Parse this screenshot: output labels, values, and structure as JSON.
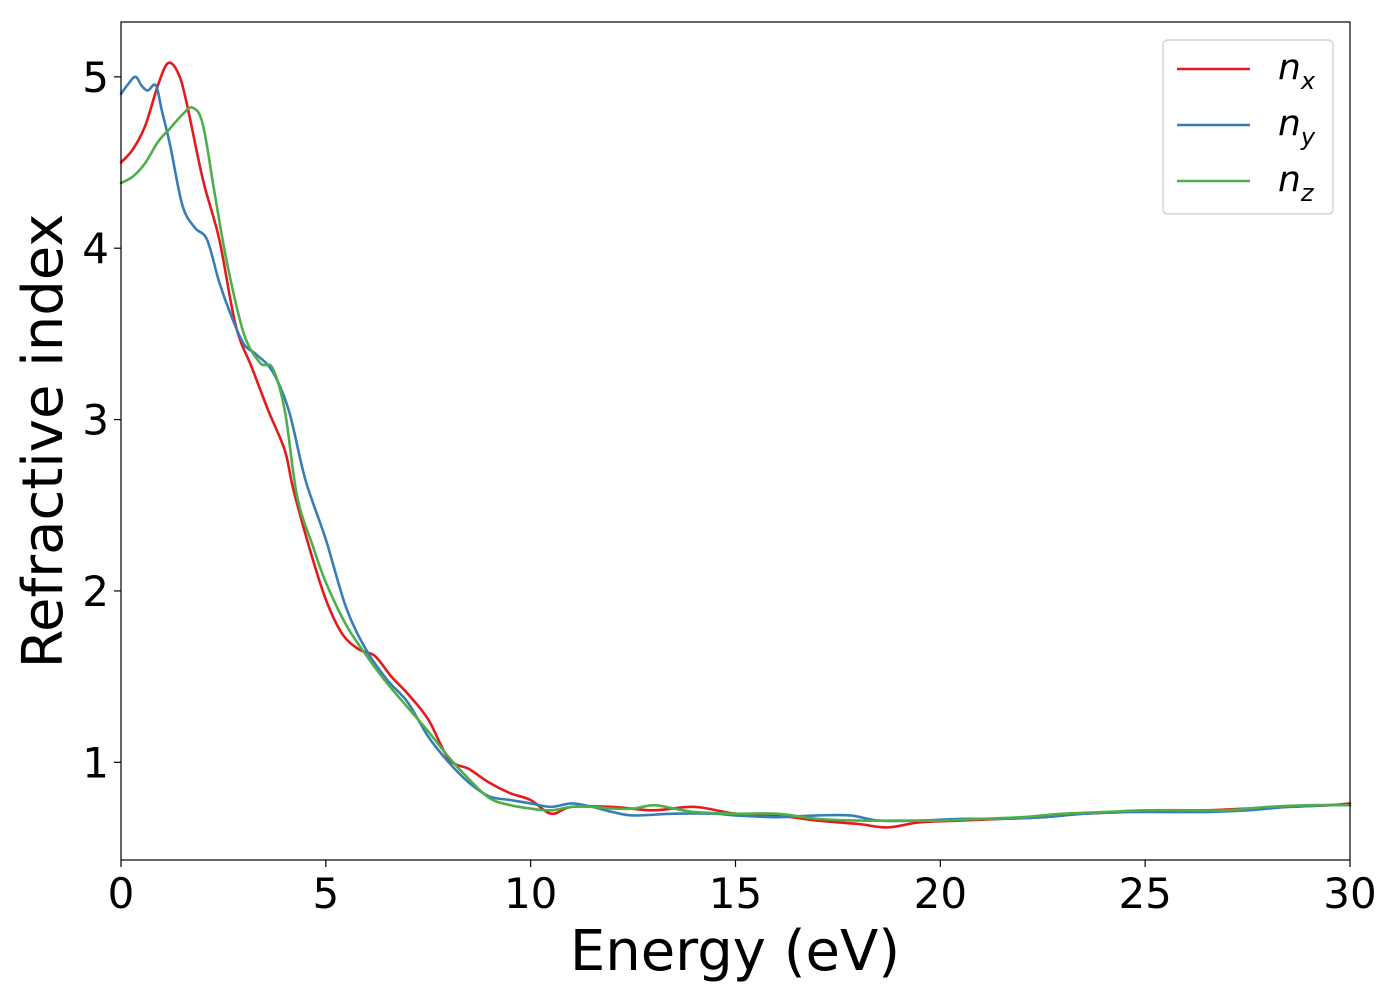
{
  "chart_data": {
    "type": "line",
    "title": "",
    "xlabel": "Energy (eV)",
    "ylabel": "Refractive index",
    "xlim": [
      0,
      30
    ],
    "ylim": [
      0.43,
      5.32
    ],
    "xticks": [
      0,
      5,
      10,
      15,
      20,
      25,
      30
    ],
    "yticks": [
      1,
      2,
      3,
      4,
      5
    ],
    "grid": false,
    "legend_position": "top-right",
    "series": [
      {
        "name": "n_x",
        "label_base": "n",
        "label_sub": "x",
        "color": "#e41a1c",
        "x": [
          0,
          0.3,
          0.6,
          0.9,
          1.15,
          1.4,
          1.6,
          2.0,
          2.4,
          2.8,
          3.2,
          3.6,
          4.0,
          4.2,
          4.6,
          5.0,
          5.4,
          5.8,
          6.2,
          6.6,
          7.0,
          7.5,
          8.0,
          8.5,
          9.0,
          9.5,
          10.0,
          10.5,
          11.0,
          12.0,
          13.0,
          14.0,
          15.0,
          16.0,
          17.0,
          18.0,
          18.7,
          19.5,
          20.5,
          21.5,
          22.5,
          23.5,
          24.5,
          25.5,
          26.5,
          27.5,
          28.5,
          29.5,
          30.0
        ],
        "y": [
          4.5,
          4.58,
          4.72,
          4.95,
          5.08,
          5.02,
          4.85,
          4.4,
          4.05,
          3.55,
          3.3,
          3.05,
          2.82,
          2.6,
          2.25,
          1.95,
          1.75,
          1.66,
          1.62,
          1.5,
          1.4,
          1.25,
          1.02,
          0.96,
          0.88,
          0.82,
          0.78,
          0.7,
          0.74,
          0.74,
          0.72,
          0.74,
          0.7,
          0.69,
          0.66,
          0.64,
          0.62,
          0.65,
          0.66,
          0.67,
          0.68,
          0.7,
          0.71,
          0.72,
          0.72,
          0.73,
          0.74,
          0.75,
          0.76
        ]
      },
      {
        "name": "n_y",
        "label_base": "n",
        "label_sub": "y",
        "color": "#377eb8",
        "x": [
          0,
          0.15,
          0.35,
          0.5,
          0.65,
          0.85,
          1.0,
          1.2,
          1.5,
          1.8,
          2.1,
          2.4,
          2.7,
          3.0,
          3.3,
          3.7,
          4.1,
          4.5,
          5.0,
          5.5,
          6.0,
          6.5,
          7.0,
          7.5,
          8.0,
          8.5,
          9.0,
          9.5,
          10.0,
          10.5,
          11.0,
          11.5,
          12.0,
          12.5,
          13.5,
          14.5,
          15.0,
          16.0,
          17.0,
          17.8,
          18.5,
          19.5,
          20.5,
          21.5,
          22.5,
          23.5,
          24.5,
          25.5,
          26.5,
          27.5,
          28.5,
          29.5,
          30.0
        ],
        "y": [
          4.9,
          4.95,
          5.0,
          4.95,
          4.92,
          4.95,
          4.8,
          4.6,
          4.25,
          4.12,
          4.05,
          3.8,
          3.6,
          3.44,
          3.38,
          3.28,
          3.05,
          2.65,
          2.3,
          1.9,
          1.65,
          1.48,
          1.35,
          1.15,
          1.0,
          0.88,
          0.8,
          0.78,
          0.76,
          0.74,
          0.76,
          0.74,
          0.71,
          0.69,
          0.7,
          0.7,
          0.69,
          0.68,
          0.69,
          0.69,
          0.66,
          0.66,
          0.67,
          0.67,
          0.68,
          0.7,
          0.71,
          0.71,
          0.71,
          0.72,
          0.74,
          0.75,
          0.75
        ]
      },
      {
        "name": "n_z",
        "label_base": "n",
        "label_sub": "z",
        "color": "#4daf4a",
        "x": [
          0,
          0.3,
          0.6,
          0.9,
          1.2,
          1.5,
          1.75,
          2.0,
          2.3,
          2.6,
          3.0,
          3.4,
          3.7,
          4.0,
          4.3,
          4.7,
          5.0,
          5.5,
          6.0,
          6.5,
          7.0,
          7.5,
          8.0,
          8.5,
          9.0,
          9.5,
          10.0,
          10.5,
          11.0,
          11.5,
          12.0,
          12.5,
          13.0,
          13.5,
          14.0,
          15.0,
          16.0,
          17.0,
          18.0,
          19.0,
          20.0,
          21.0,
          22.0,
          23.0,
          24.0,
          25.0,
          26.0,
          27.0,
          28.0,
          29.0,
          30.0
        ],
        "y": [
          4.38,
          4.42,
          4.5,
          4.62,
          4.7,
          4.78,
          4.82,
          4.72,
          4.3,
          3.9,
          3.5,
          3.33,
          3.3,
          3.05,
          2.55,
          2.25,
          2.05,
          1.8,
          1.62,
          1.46,
          1.32,
          1.18,
          1.03,
          0.9,
          0.79,
          0.75,
          0.73,
          0.72,
          0.74,
          0.74,
          0.73,
          0.73,
          0.75,
          0.73,
          0.71,
          0.7,
          0.7,
          0.67,
          0.66,
          0.66,
          0.66,
          0.67,
          0.68,
          0.7,
          0.71,
          0.72,
          0.72,
          0.72,
          0.74,
          0.75,
          0.75
        ]
      }
    ]
  }
}
